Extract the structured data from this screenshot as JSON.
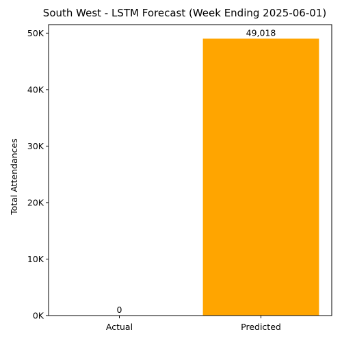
{
  "chart_data": {
    "type": "bar",
    "title": "South West - LSTM Forecast (Week Ending 2025-06-01)",
    "xlabel": "",
    "ylabel": "Total Attendances",
    "categories": [
      "Actual",
      "Predicted"
    ],
    "values": [
      0,
      49018
    ],
    "value_labels": [
      "0",
      "49,018"
    ],
    "bar_colors": [
      "#1f77b4",
      "#FFA500"
    ],
    "ylim": [
      0,
      51500
    ],
    "yticks": [
      0,
      10000,
      20000,
      30000,
      40000,
      50000
    ],
    "ytick_labels": [
      "0K",
      "10K",
      "20K",
      "30K",
      "40K",
      "50K"
    ],
    "grid": false,
    "legend": "none"
  }
}
